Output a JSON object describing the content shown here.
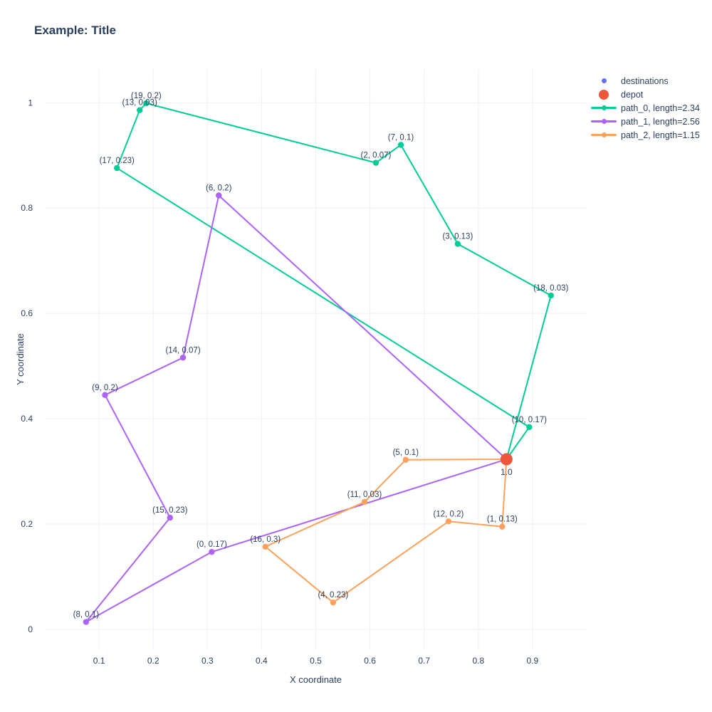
{
  "title": "Example: Title",
  "colors": {
    "text": "#2a3f5f",
    "grid": "#ebf0f8",
    "background": "#ffffff",
    "destinations": "#636efa",
    "depot": "#ef553b",
    "path_0": "#00cc96",
    "path_1": "#ab63fa",
    "path_2": "#ffa15a"
  },
  "legend": {
    "position": "right-top",
    "items": [
      {
        "label": "destinations",
        "type": "dot-small",
        "color": "#636efa"
      },
      {
        "label": "depot",
        "type": "dot-large",
        "color": "#ef553b"
      },
      {
        "label": "path_0, length=2.34",
        "type": "line-marker",
        "color": "#00cc96"
      },
      {
        "label": "path_1, length=2.56",
        "type": "line-marker",
        "color": "#ab63fa"
      },
      {
        "label": "path_2, length=1.15",
        "type": "line-marker",
        "color": "#ffa15a"
      }
    ]
  },
  "axes": {
    "x": {
      "title": "X coordinate",
      "tick_labels": [
        "0.1",
        "0.2",
        "0.3",
        "0.4",
        "0.5",
        "0.6",
        "0.7",
        "0.8",
        "0.9"
      ],
      "tick_values": [
        0.1,
        0.2,
        0.3,
        0.4,
        0.5,
        0.6,
        0.7,
        0.8,
        0.9
      ]
    },
    "y": {
      "title": "Y coordinate",
      "tick_labels": [
        "0",
        "0.2",
        "0.4",
        "0.6",
        "0.8",
        "1"
      ],
      "tick_values": [
        0,
        0.2,
        0.4,
        0.6,
        0.8,
        1
      ]
    }
  },
  "chart_data": {
    "type": "scatter",
    "title": "Example: Title",
    "xlabel": "X coordinate",
    "ylabel": "Y coordinate",
    "xlim": [
      0,
      1.0
    ],
    "ylim": [
      -0.038,
      1.064
    ],
    "grid": true,
    "depot": {
      "x": 0.852,
      "y": 0.323,
      "label": "1.0"
    },
    "destinations": [
      {
        "id": 0,
        "x": 0.308,
        "y": 0.147,
        "value": 0.17,
        "label": "(0, 0.17)"
      },
      {
        "id": 1,
        "x": 0.844,
        "y": 0.195,
        "value": 0.13,
        "label": "(1, 0.13)"
      },
      {
        "id": 2,
        "x": 0.611,
        "y": 0.886,
        "value": 0.07,
        "label": "(2, 0.07)"
      },
      {
        "id": 3,
        "x": 0.762,
        "y": 0.732,
        "value": 0.13,
        "label": "(3, 0.13)"
      },
      {
        "id": 4,
        "x": 0.532,
        "y": 0.051,
        "value": 0.23,
        "label": "(4, 0.23)"
      },
      {
        "id": 5,
        "x": 0.666,
        "y": 0.322,
        "value": 0.1,
        "label": "(5, 0.1)"
      },
      {
        "id": 6,
        "x": 0.321,
        "y": 0.824,
        "value": 0.2,
        "label": "(6, 0.2)"
      },
      {
        "id": 7,
        "x": 0.657,
        "y": 0.92,
        "value": 0.1,
        "label": "(7, 0.1)"
      },
      {
        "id": 8,
        "x": 0.076,
        "y": 0.014,
        "value": 0.1,
        "label": "(8, 0.1)"
      },
      {
        "id": 9,
        "x": 0.111,
        "y": 0.445,
        "value": 0.2,
        "label": "(9, 0.2)"
      },
      {
        "id": 10,
        "x": 0.894,
        "y": 0.384,
        "value": 0.17,
        "label": "(10, 0.17)"
      },
      {
        "id": 11,
        "x": 0.59,
        "y": 0.242,
        "value": 0.03,
        "label": "(11, 0.03)"
      },
      {
        "id": 12,
        "x": 0.745,
        "y": 0.205,
        "value": 0.2,
        "label": "(12, 0.2)"
      },
      {
        "id": 13,
        "x": 0.175,
        "y": 0.986,
        "value": 0.03,
        "label": "(13, 0.03)"
      },
      {
        "id": 14,
        "x": 0.255,
        "y": 0.516,
        "value": 0.07,
        "label": "(14, 0.07)"
      },
      {
        "id": 15,
        "x": 0.231,
        "y": 0.212,
        "value": 0.23,
        "label": "(15, 0.23)"
      },
      {
        "id": 16,
        "x": 0.407,
        "y": 0.157,
        "value": 0.3,
        "label": "(16, 0.3)"
      },
      {
        "id": 17,
        "x": 0.133,
        "y": 0.876,
        "value": 0.23,
        "label": "(17, 0.23)"
      },
      {
        "id": 18,
        "x": 0.934,
        "y": 0.634,
        "value": 0.03,
        "label": "(18, 0.03)"
      },
      {
        "id": 19,
        "x": 0.187,
        "y": 0.999,
        "value": 0.2,
        "label": "(19, 0.2)"
      }
    ],
    "paths": [
      {
        "name": "path_0, length=2.34",
        "length": 2.34,
        "color_key": "path_0",
        "route": [
          "depot",
          10,
          17,
          13,
          19,
          2,
          7,
          3,
          18,
          "depot"
        ]
      },
      {
        "name": "path_1, length=2.56",
        "length": 2.56,
        "color_key": "path_1",
        "route": [
          "depot",
          6,
          14,
          9,
          15,
          8,
          0,
          "depot"
        ]
      },
      {
        "name": "path_2, length=1.15",
        "length": 1.15,
        "color_key": "path_2",
        "route": [
          "depot",
          5,
          11,
          16,
          4,
          12,
          1,
          "depot"
        ]
      }
    ]
  }
}
